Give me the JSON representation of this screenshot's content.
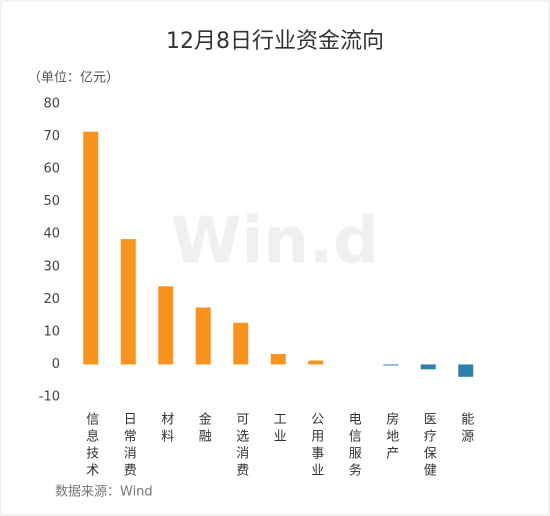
{
  "chart_data": {
    "type": "bar",
    "title": "12月8日行业资金流向",
    "unit_label": "（单位：亿元）",
    "source": "数据来源：Wind",
    "watermark": "Win.d",
    "categories": [
      "信息技术",
      "日常消费",
      "材料",
      "金融",
      "可选消费",
      "工业",
      "公用事业",
      "电信服务",
      "房地产",
      "医疗保健",
      "能源"
    ],
    "values": [
      71.5,
      38.5,
      24,
      17.5,
      12.8,
      3.2,
      1.2,
      0,
      -0.3,
      -1.5,
      -3.8
    ],
    "colors": [
      "#f7931e",
      "#f7931e",
      "#f7931e",
      "#f7931e",
      "#f7931e",
      "#f7931e",
      "#f7931e",
      "#f7931e",
      "#2e7fad",
      "#2e7fad",
      "#2e7fad"
    ],
    "ylim": [
      -10,
      80
    ],
    "yticks": [
      -10,
      0,
      10,
      20,
      30,
      40,
      50,
      60,
      70,
      80
    ],
    "grid": false
  }
}
